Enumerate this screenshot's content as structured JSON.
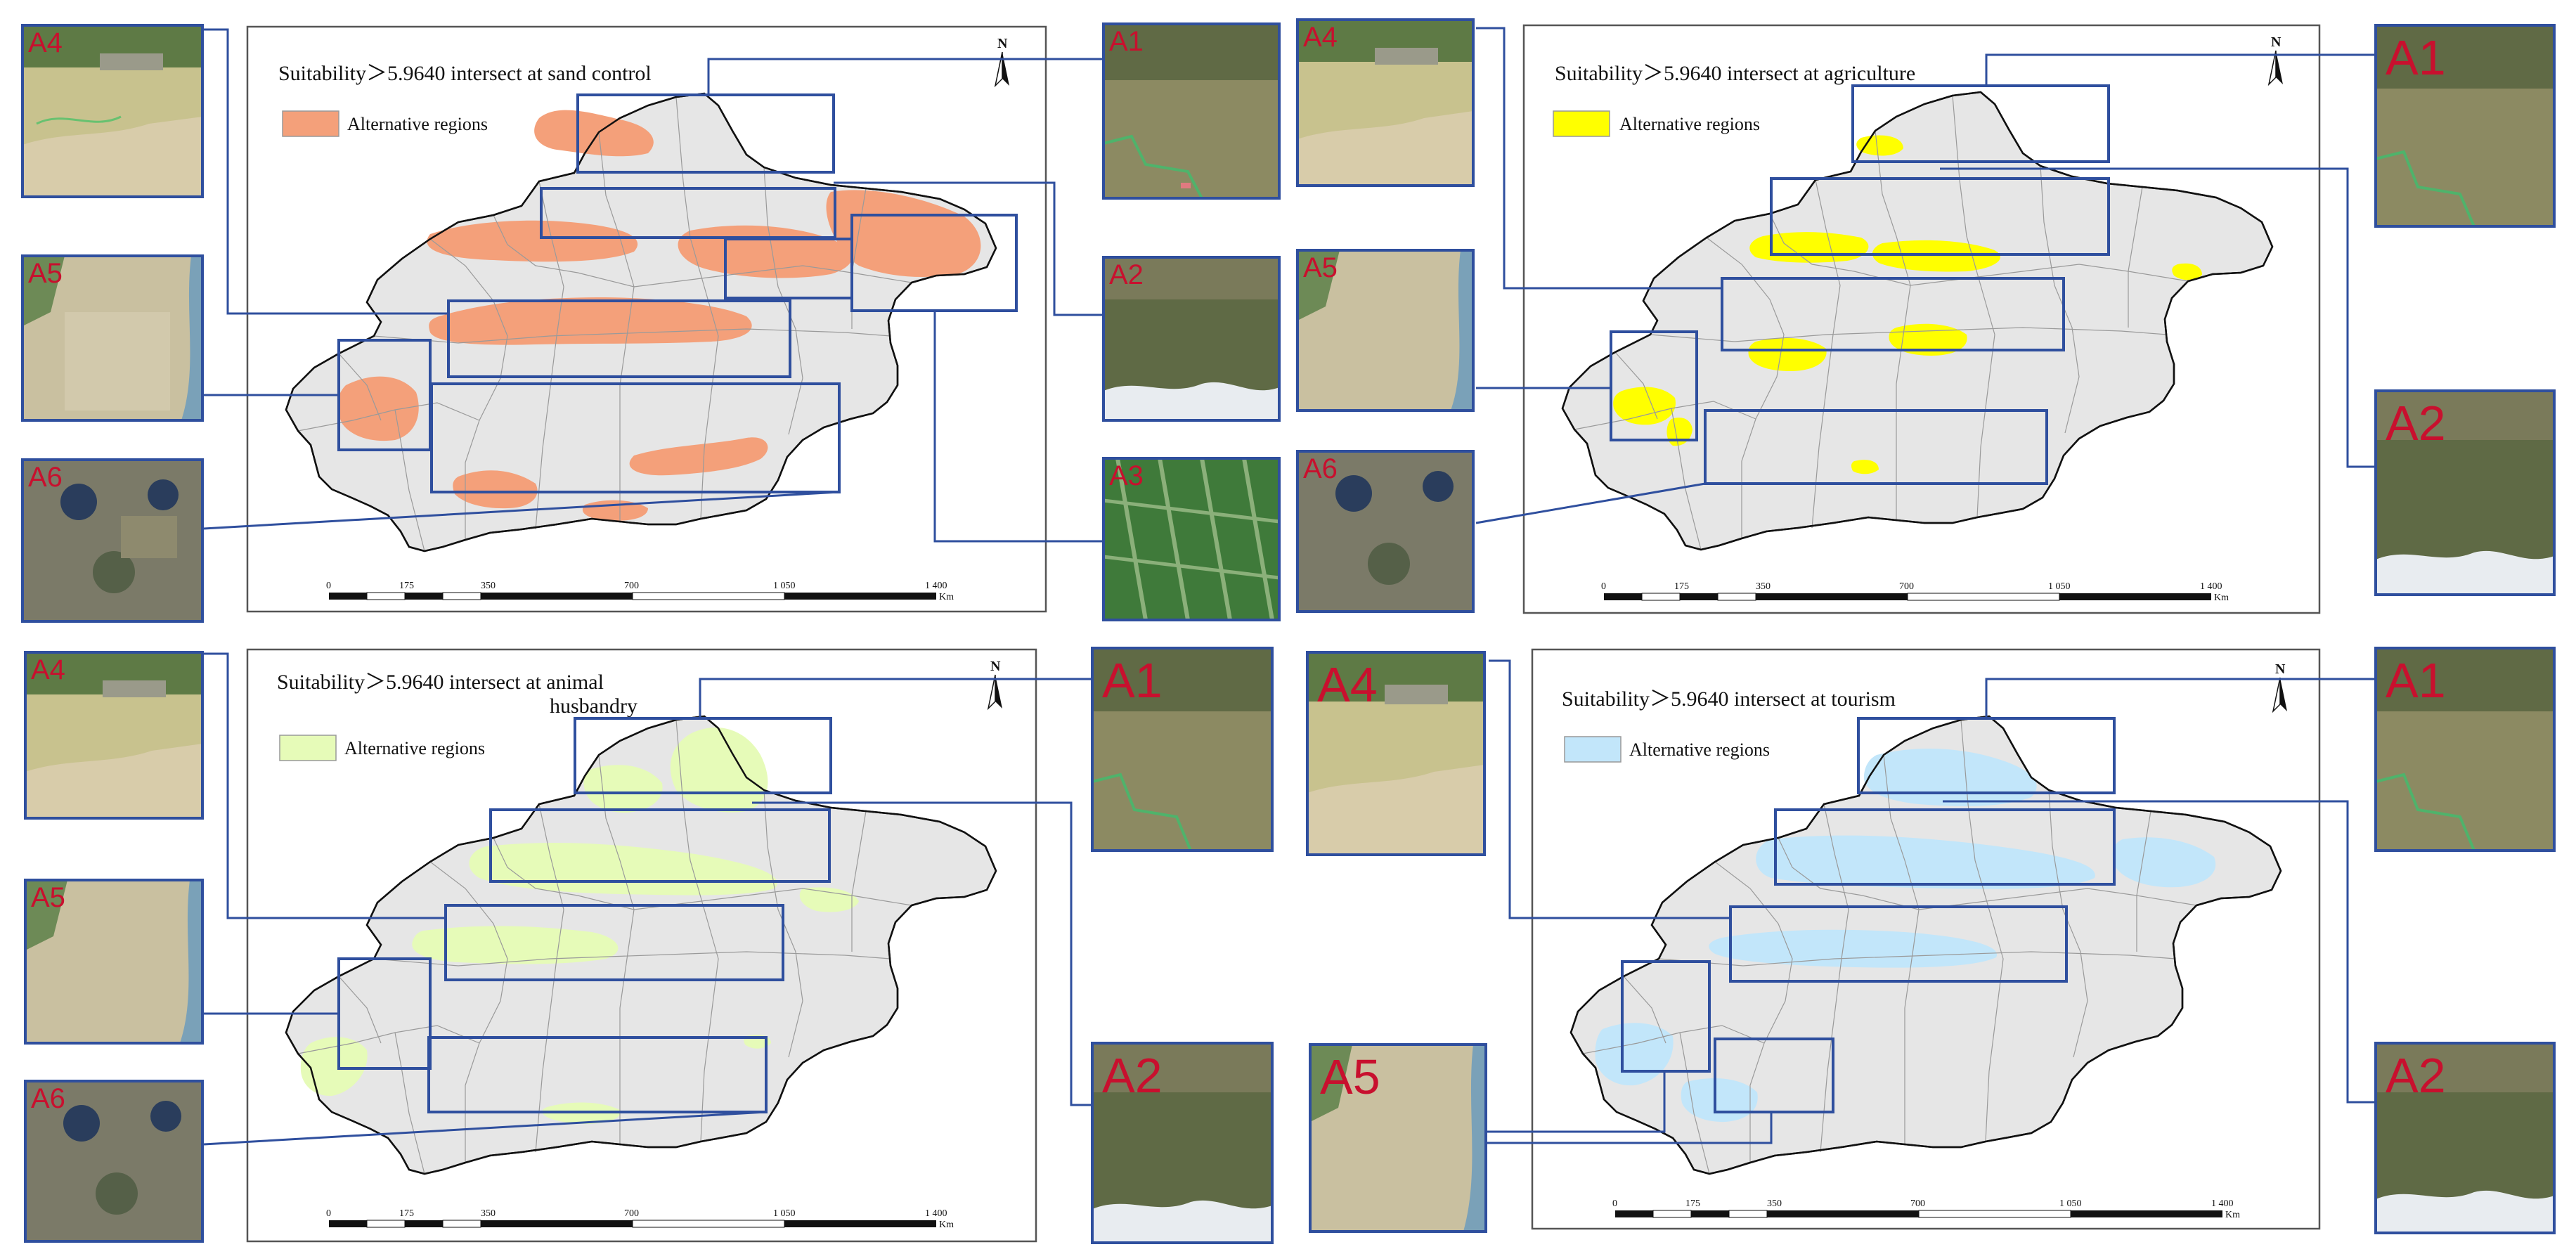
{
  "figure": {
    "panels": [
      {
        "id": "sand",
        "title": "Suitability＞5.9640 intersect at sand control",
        "title_line2": "",
        "legend_label": "Alternative regions",
        "fill_color": "#f4a07a",
        "north_label": "N",
        "scale_ticks": [
          "0",
          "175",
          "350",
          "700",
          "1 050",
          "1 400"
        ],
        "scale_unit": "Km",
        "thumbnails": [
          "A4",
          "A5",
          "A6",
          "A1",
          "A2",
          "A3"
        ]
      },
      {
        "id": "agri",
        "title": "Suitability＞5.9640 intersect at agriculture",
        "title_line2": "",
        "legend_label": "Alternative regions",
        "fill_color": "#ffff00",
        "north_label": "N",
        "scale_ticks": [
          "0",
          "175",
          "350",
          "700",
          "1 050",
          "1 400"
        ],
        "scale_unit": "Km",
        "thumbnails": [
          "A4",
          "A5",
          "A6",
          "A1",
          "A2"
        ]
      },
      {
        "id": "animal",
        "title": "Suitability＞5.9640 intersect at animal",
        "title_line2": "husbandry",
        "legend_label": "Alternative regions",
        "fill_color": "#e6fbb8",
        "north_label": "N",
        "scale_ticks": [
          "0",
          "175",
          "350",
          "700",
          "1 050",
          "1 400"
        ],
        "scale_unit": "Km",
        "thumbnails": [
          "A4",
          "A5",
          "A6",
          "A1",
          "A2"
        ]
      },
      {
        "id": "tour",
        "title": "Suitability＞5.9640 intersect at tourism",
        "title_line2": "",
        "legend_label": "Alternative regions",
        "fill_color": "#c2e6fa",
        "north_label": "N",
        "scale_ticks": [
          "0",
          "175",
          "350",
          "700",
          "1 050",
          "1 400"
        ],
        "scale_unit": "Km",
        "thumbnails": [
          "A4",
          "A5",
          "A1",
          "A2"
        ]
      }
    ],
    "colors": {
      "box": "#2f4f9e",
      "label": "#c8102e",
      "land": "#e6e6e6",
      "boundary": "#111111"
    }
  }
}
